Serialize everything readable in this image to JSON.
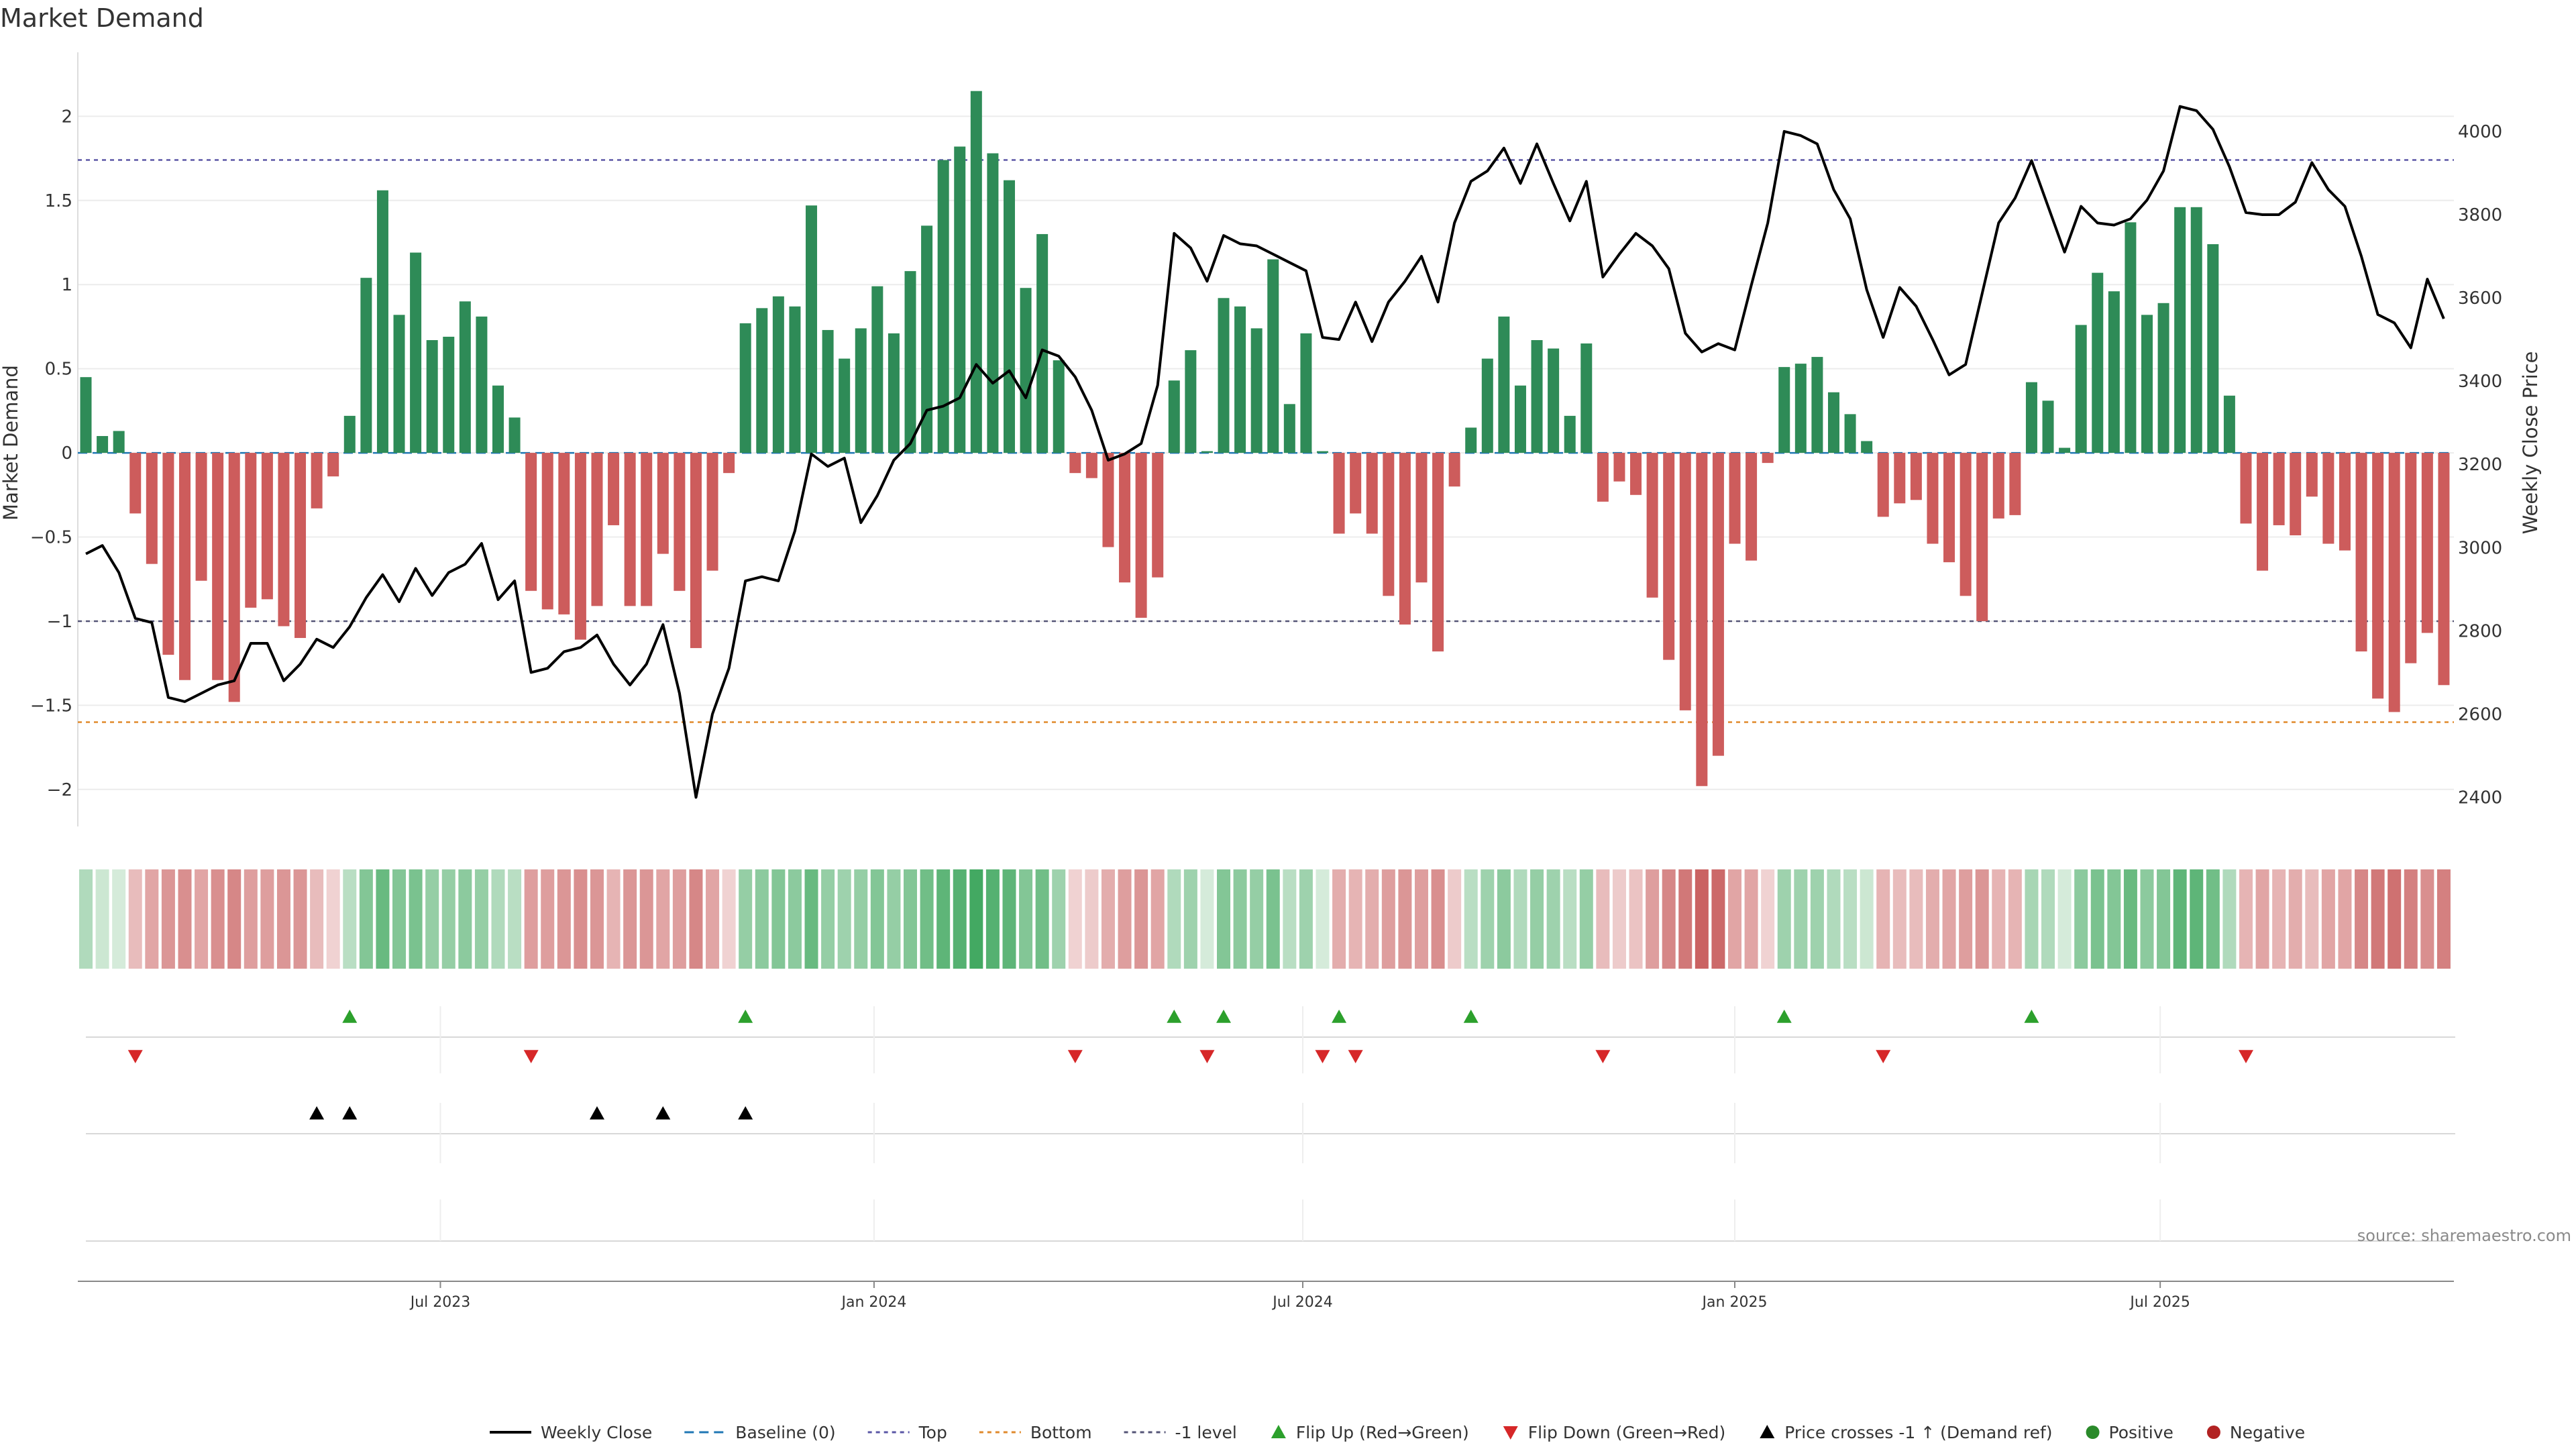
{
  "title": "Market Demand",
  "source": "source: sharemaestro.com",
  "chart_data": {
    "type": "bar",
    "left_axis": {
      "label": "Market Demand",
      "range": [
        -2.22,
        2.38
      ],
      "ticks": [
        "2",
        "1.5",
        "1",
        "0.5",
        "0",
        "−0.5",
        "−1",
        "−1.5",
        "−2"
      ],
      "tick_values": [
        2,
        1.5,
        1,
        0.5,
        0,
        -0.5,
        -1,
        -1.5,
        -2
      ]
    },
    "right_axis": {
      "label": "Weekly Close Price",
      "range": [
        2330,
        4190
      ],
      "ticks": [
        "4000",
        "3800",
        "3600",
        "3400",
        "3200",
        "3000",
        "2800",
        "2600",
        "2400"
      ],
      "tick_values": [
        4000,
        3800,
        3600,
        3400,
        3200,
        3000,
        2800,
        2600,
        2400
      ]
    },
    "date_axis": {
      "ticks": [
        "Jul 2023",
        "Jan 2024",
        "Jul 2024",
        "Jan 2025",
        "Jul 2025"
      ],
      "tick_weeks": [
        21.5,
        47.8,
        73.8,
        100,
        125.8
      ]
    },
    "reference_lines": {
      "top": 1.74,
      "bottom": -1.6,
      "minus1_level": -1,
      "baseline": 0
    },
    "demand": [
      0.45,
      0.1,
      0.13,
      -0.36,
      -0.66,
      -1.2,
      -1.35,
      -0.76,
      -1.35,
      -1.48,
      -0.92,
      -0.87,
      -1.03,
      -1.1,
      -0.33,
      -0.14,
      0.22,
      1.04,
      1.56,
      0.82,
      1.19,
      0.67,
      0.69,
      0.9,
      0.81,
      0.4,
      0.21,
      -0.82,
      -0.93,
      -0.96,
      -1.11,
      -0.91,
      -0.43,
      -0.91,
      -0.91,
      -0.6,
      -0.82,
      -1.16,
      -0.7,
      -0.12,
      0.77,
      0.86,
      0.93,
      0.87,
      1.47,
      0.73,
      0.56,
      0.74,
      0.99,
      0.71,
      1.08,
      1.35,
      1.74,
      1.82,
      2.15,
      1.78,
      1.62,
      0.98,
      1.3,
      0.55,
      -0.12,
      -0.15,
      -0.56,
      -0.77,
      -0.98,
      -0.74,
      0.43,
      0.61,
      0.01,
      0.92,
      0.87,
      0.74,
      1.15,
      0.29,
      0.71,
      0.01,
      -0.48,
      -0.36,
      -0.48,
      -0.85,
      -1.02,
      -0.77,
      -1.18,
      -0.2,
      0.15,
      0.56,
      0.81,
      0.4,
      0.67,
      0.62,
      0.22,
      0.65,
      -0.29,
      -0.17,
      -0.25,
      -0.86,
      -1.23,
      -1.53,
      -1.98,
      -1.8,
      -0.54,
      -0.64,
      -0.06,
      0.51,
      0.53,
      0.57,
      0.36,
      0.23,
      0.07,
      -0.38,
      -0.3,
      -0.28,
      -0.54,
      -0.65,
      -0.85,
      -1.0,
      -0.39,
      -0.37,
      0.42,
      0.31,
      0.03,
      0.76,
      1.07,
      0.96,
      1.37,
      0.82,
      0.89,
      1.46,
      1.46,
      1.24,
      0.34,
      -0.42,
      -0.7,
      -0.43,
      -0.49,
      -0.26,
      -0.54,
      -0.58,
      -1.18,
      -1.46,
      -1.54,
      -1.25,
      -1.07,
      -1.38
    ],
    "weekly_close": [
      2985,
      3005,
      2940,
      2830,
      2820,
      2640,
      2630,
      2650,
      2670,
      2680,
      2770,
      2770,
      2680,
      2720,
      2780,
      2760,
      2810,
      2880,
      2935,
      2870,
      2950,
      2885,
      2940,
      2960,
      3010,
      2875,
      2920,
      2700,
      2710,
      2750,
      2760,
      2790,
      2720,
      2670,
      2720,
      2815,
      2650,
      2400,
      2600,
      2710,
      2920,
      2930,
      2920,
      3040,
      3225,
      3195,
      3215,
      3060,
      3125,
      3210,
      3250,
      3330,
      3340,
      3360,
      3440,
      3395,
      3425,
      3360,
      3475,
      3460,
      3410,
      3330,
      3210,
      3225,
      3250,
      3390,
      3755,
      3720,
      3640,
      3750,
      3730,
      3725,
      3705,
      3685,
      3665,
      3505,
      3500,
      3590,
      3495,
      3590,
      3640,
      3700,
      3590,
      3780,
      3880,
      3905,
      3960,
      3875,
      3970,
      3875,
      3785,
      3880,
      3650,
      3705,
      3755,
      3725,
      3670,
      3515,
      3470,
      3490,
      3475,
      3630,
      3780,
      4000,
      3990,
      3970,
      3860,
      3790,
      3620,
      3505,
      3625,
      3580,
      3500,
      3415,
      3440,
      3610,
      3780,
      3840,
      3930,
      3820,
      3710,
      3820,
      3780,
      3775,
      3790,
      3835,
      3905,
      4060,
      4050,
      4005,
      3915,
      3805,
      3800,
      3800,
      3830,
      3925,
      3860,
      3820,
      3700,
      3560,
      3540,
      3480,
      3645,
      3550
    ],
    "flip_up_weeks": [
      16,
      40,
      66,
      69,
      76,
      84,
      103,
      118
    ],
    "flip_down_weeks": [
      3,
      27,
      60,
      68,
      75,
      77,
      92,
      109,
      131
    ],
    "price_cross_weeks": [
      14,
      16,
      31,
      35,
      40
    ],
    "heat_levels": [
      0.35,
      0.2,
      0.15,
      0.35,
      0.5,
      0.6,
      0.65,
      0.5,
      0.65,
      0.7,
      0.55,
      0.55,
      0.6,
      0.6,
      0.35,
      0.2,
      0.3,
      0.6,
      0.75,
      0.6,
      0.65,
      0.5,
      0.5,
      0.55,
      0.5,
      0.35,
      0.3,
      0.55,
      0.55,
      0.6,
      0.65,
      0.6,
      0.4,
      0.6,
      0.6,
      0.5,
      0.55,
      0.7,
      0.5,
      0.2,
      0.5,
      0.55,
      0.6,
      0.55,
      0.75,
      0.5,
      0.45,
      0.5,
      0.6,
      0.5,
      0.6,
      0.7,
      0.8,
      0.85,
      0.95,
      0.85,
      0.8,
      0.6,
      0.7,
      0.45,
      0.2,
      0.25,
      0.45,
      0.55,
      0.6,
      0.5,
      0.35,
      0.45,
      0.15,
      0.6,
      0.55,
      0.5,
      0.65,
      0.3,
      0.45,
      0.15,
      0.45,
      0.4,
      0.45,
      0.55,
      0.6,
      0.55,
      0.65,
      0.25,
      0.3,
      0.45,
      0.55,
      0.35,
      0.5,
      0.45,
      0.3,
      0.5,
      0.35,
      0.25,
      0.3,
      0.55,
      0.7,
      0.8,
      0.95,
      0.9,
      0.5,
      0.5,
      0.2,
      0.45,
      0.45,
      0.45,
      0.35,
      0.3,
      0.2,
      0.4,
      0.35,
      0.35,
      0.45,
      0.5,
      0.55,
      0.6,
      0.4,
      0.4,
      0.4,
      0.35,
      0.15,
      0.55,
      0.65,
      0.6,
      0.75,
      0.55,
      0.6,
      0.8,
      0.8,
      0.7,
      0.35,
      0.4,
      0.5,
      0.4,
      0.45,
      0.35,
      0.5,
      0.5,
      0.7,
      0.8,
      0.85,
      0.75,
      0.65,
      0.75
    ],
    "legend": [
      {
        "key": "weekly-close",
        "label": "Weekly Close",
        "kind": "line",
        "color": "#000000"
      },
      {
        "key": "baseline",
        "label": "Baseline (0)",
        "kind": "dash",
        "color": "#1f77b4"
      },
      {
        "key": "top",
        "label": "Top",
        "kind": "dot",
        "color": "#5b57a6"
      },
      {
        "key": "bottom",
        "label": "Bottom",
        "kind": "dot",
        "color": "#e08a2c"
      },
      {
        "key": "minus1",
        "label": "-1 level",
        "kind": "dot",
        "color": "#555577"
      },
      {
        "key": "flip-up",
        "label": "Flip Up (Red→Green)",
        "kind": "tri-up",
        "color": "#2ca02c"
      },
      {
        "key": "flip-down",
        "label": "Flip Down (Green→Red)",
        "kind": "tri-down",
        "color": "#d62728"
      },
      {
        "key": "price-cross",
        "label": "Price crosses -1 ↑ (Demand ref)",
        "kind": "tri-up",
        "color": "#000000"
      },
      {
        "key": "positive",
        "label": "Positive",
        "kind": "circle",
        "color": "#2a8a2a"
      },
      {
        "key": "negative",
        "label": "Negative",
        "kind": "circle",
        "color": "#b22222"
      }
    ],
    "colors": {
      "positive_bar": "#2e8b57",
      "negative_bar": "#cd5c5c",
      "grid": "#ececec"
    }
  }
}
